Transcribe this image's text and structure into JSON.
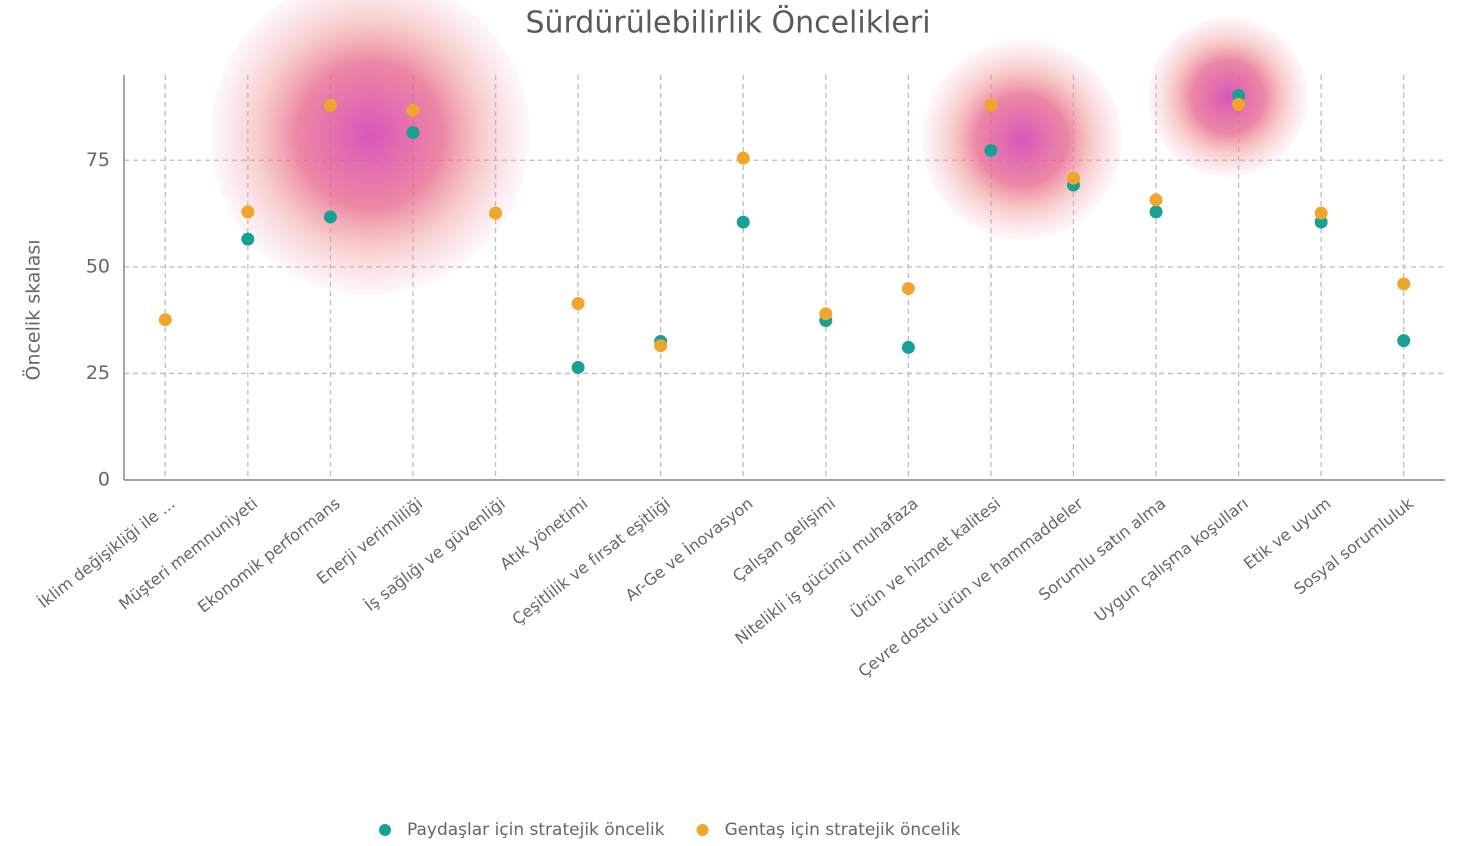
{
  "chart_data": {
    "type": "scatter",
    "title": "Sürdürülebilirlik Öncelikleri",
    "y_label": "Öncelik skalası",
    "categories": [
      "İklim değişikliği ile ...",
      "Müşteri memnuniyeti",
      "Ekonomik performans",
      "Enerji verimliliği",
      "İş sağlığı ve güvenliği",
      "Atık yönetimi",
      "Çeşitlilik ve fırsat eşitliği",
      "Ar-Ge ve İnovasyon",
      "Çalışan gelişimi",
      "Nitelikli iş gücünü muhafaza",
      "Ürün ve hizmet kalitesi",
      "Çevre dostu ürün ve hammaddeler",
      "Sorumlu satın alma",
      "Uygun çalışma koşulları",
      "Etik ve uyum",
      "Sosyal sorumluluk"
    ],
    "series": [
      {
        "name": "Paydaşlar için stratejik öncelik",
        "color": "#17a096",
        "values": [
          null,
          56.5,
          61.7,
          81.5,
          null,
          26.4,
          32.5,
          60.5,
          37.4,
          31.1,
          77.3,
          69.2,
          62.9,
          90.2,
          60.5,
          32.7
        ]
      },
      {
        "name": "Gentaş için stratejik öncelik",
        "color": "#f0a52c",
        "values": [
          37.6,
          62.9,
          87.9,
          86.7,
          62.6,
          41.4,
          31.5,
          75.5,
          39.0,
          44.9,
          87.9,
          70.8,
          65.7,
          88.1,
          62.6,
          46.0
        ]
      }
    ],
    "ylim": [
      0,
      95
    ],
    "yticks": [
      0,
      25,
      50,
      75
    ],
    "grid": true,
    "legend": "bottom"
  }
}
